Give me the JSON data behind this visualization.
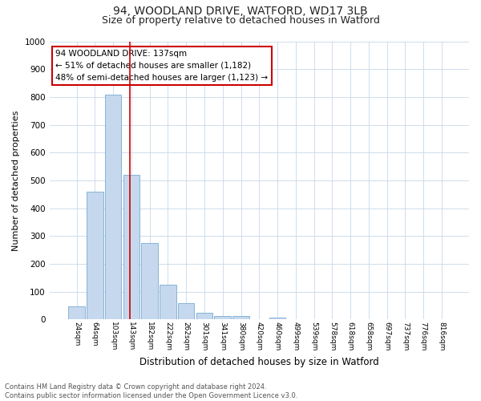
{
  "title_line1": "94, WOODLAND DRIVE, WATFORD, WD17 3LB",
  "title_line2": "Size of property relative to detached houses in Watford",
  "xlabel": "Distribution of detached houses by size in Watford",
  "ylabel": "Number of detached properties",
  "bar_labels": [
    "24sqm",
    "64sqm",
    "103sqm",
    "143sqm",
    "182sqm",
    "222sqm",
    "262sqm",
    "301sqm",
    "341sqm",
    "380sqm",
    "420sqm",
    "460sqm",
    "499sqm",
    "539sqm",
    "578sqm",
    "618sqm",
    "658sqm",
    "697sqm",
    "737sqm",
    "776sqm",
    "816sqm"
  ],
  "bar_values": [
    46,
    460,
    808,
    520,
    275,
    125,
    60,
    25,
    12,
    12,
    0,
    8,
    0,
    0,
    0,
    0,
    0,
    0,
    0,
    0,
    0
  ],
  "bar_color": "#c5d8ee",
  "bar_edge_color": "#7aaad0",
  "annotation_text": "94 WOODLAND DRIVE: 137sqm\n← 51% of detached houses are smaller (1,182)\n48% of semi-detached houses are larger (1,123) →",
  "annotation_box_color": "#ffffff",
  "annotation_box_edge": "#cc0000",
  "red_line_color": "#cc0000",
  "ylim": [
    0,
    1000
  ],
  "yticks": [
    0,
    100,
    200,
    300,
    400,
    500,
    600,
    700,
    800,
    900,
    1000
  ],
  "footer_text": "Contains HM Land Registry data © Crown copyright and database right 2024.\nContains public sector information licensed under the Open Government Licence v3.0.",
  "bg_color": "#ffffff",
  "grid_color": "#c8d8e8",
  "title_fontsize": 10,
  "subtitle_fontsize": 9,
  "figsize": [
    6.0,
    5.0
  ],
  "dpi": 100
}
